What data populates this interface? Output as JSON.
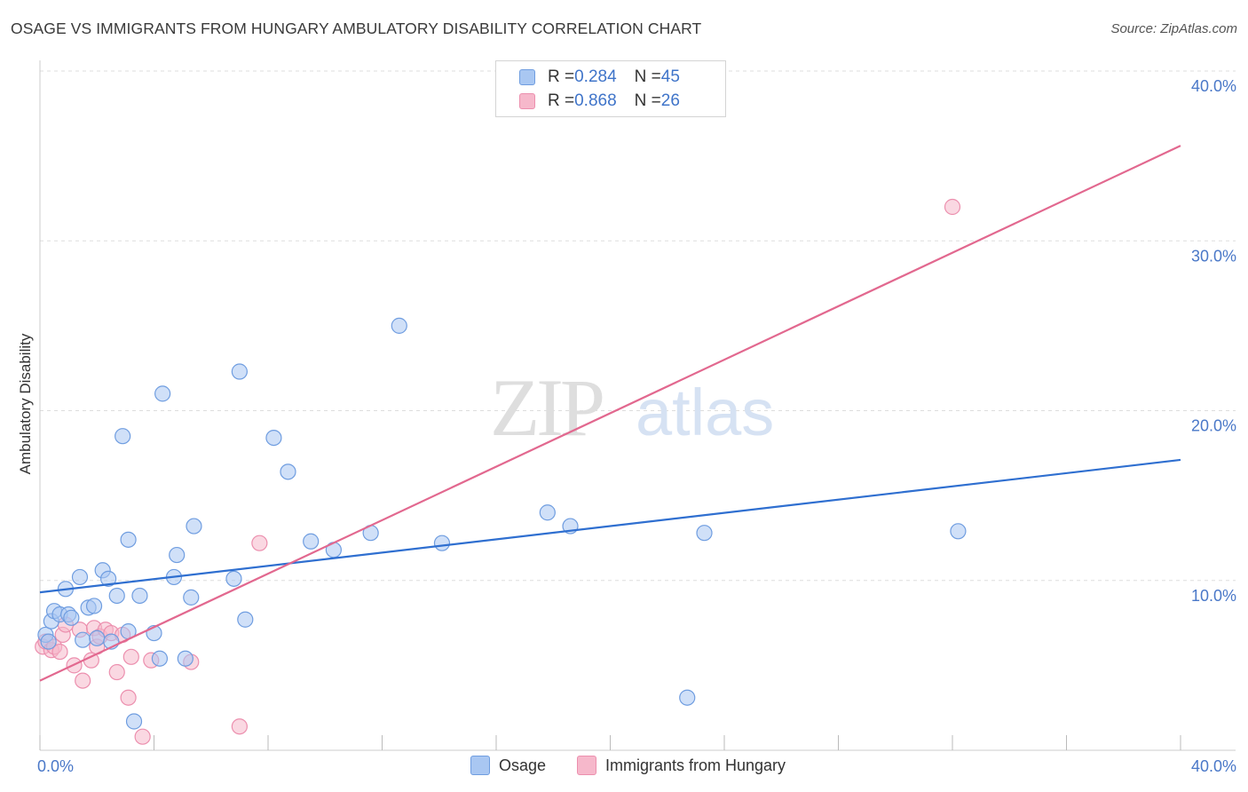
{
  "header": {
    "title": "OSAGE VS IMMIGRANTS FROM HUNGARY AMBULATORY DISABILITY CORRELATION CHART",
    "source": "Source: ZipAtlas.com"
  },
  "legend": {
    "rows": [
      {
        "r_label": "R = ",
        "r_value": "0.284",
        "n_label": "N = ",
        "n_value": "45"
      },
      {
        "r_label": "R = ",
        "r_value": "0.868",
        "n_label": "N = ",
        "n_value": "26"
      }
    ]
  },
  "bottom_legend": [
    "Osage",
    "Immigrants from Hungary"
  ],
  "watermark": {
    "part1": "ZIP",
    "part2": "atlas"
  },
  "colors": {
    "osage_fill": "#a9c7f2",
    "osage_stroke": "#6f9de0",
    "osage_line": "#2f6fd0",
    "hungary_fill": "#f6b8cb",
    "hungary_stroke": "#ec8fae",
    "hungary_line": "#e2688f",
    "tick_text": "#4a78c8",
    "grid": "#dddddd"
  },
  "chart_data": {
    "type": "scatter",
    "title": "OSAGE VS IMMIGRANTS FROM HUNGARY AMBULATORY DISABILITY CORRELATION CHART",
    "xlabel": "",
    "ylabel": "Ambulatory Disability",
    "xlim": [
      0,
      40
    ],
    "ylim": [
      0,
      40
    ],
    "x_tick_labels": [
      "0.0%",
      "40.0%"
    ],
    "y_ticks": [
      10,
      20,
      30,
      40
    ],
    "y_tick_labels": [
      "10.0%",
      "20.0%",
      "30.0%",
      "40.0%"
    ],
    "series": [
      {
        "name": "Osage",
        "R": 0.284,
        "N": 45,
        "trend": {
          "x": [
            0,
            40
          ],
          "y": [
            9.3,
            17.1
          ]
        },
        "points": [
          [
            0.2,
            6.8
          ],
          [
            0.3,
            6.4
          ],
          [
            0.4,
            7.6
          ],
          [
            0.5,
            8.2
          ],
          [
            0.7,
            8.0
          ],
          [
            0.9,
            9.5
          ],
          [
            1.0,
            8.0
          ],
          [
            1.1,
            7.8
          ],
          [
            1.4,
            10.2
          ],
          [
            1.5,
            6.5
          ],
          [
            1.7,
            8.4
          ],
          [
            1.9,
            8.5
          ],
          [
            2.0,
            6.6
          ],
          [
            2.2,
            10.6
          ],
          [
            2.4,
            10.1
          ],
          [
            2.5,
            6.4
          ],
          [
            2.7,
            9.1
          ],
          [
            2.9,
            18.5
          ],
          [
            3.1,
            7.0
          ],
          [
            3.1,
            12.4
          ],
          [
            3.3,
            1.7
          ],
          [
            3.5,
            9.1
          ],
          [
            4.0,
            6.9
          ],
          [
            4.2,
            5.4
          ],
          [
            4.3,
            21.0
          ],
          [
            4.7,
            10.2
          ],
          [
            4.8,
            11.5
          ],
          [
            5.1,
            5.4
          ],
          [
            5.3,
            9.0
          ],
          [
            5.4,
            13.2
          ],
          [
            6.8,
            10.1
          ],
          [
            7.0,
            22.3
          ],
          [
            7.2,
            7.7
          ],
          [
            8.2,
            18.4
          ],
          [
            8.7,
            16.4
          ],
          [
            9.5,
            12.3
          ],
          [
            10.3,
            11.8
          ],
          [
            11.6,
            12.8
          ],
          [
            12.6,
            25.0
          ],
          [
            14.1,
            12.2
          ],
          [
            17.8,
            14.0
          ],
          [
            18.6,
            13.2
          ],
          [
            22.7,
            3.1
          ],
          [
            23.3,
            12.8
          ],
          [
            32.2,
            12.9
          ]
        ]
      },
      {
        "name": "Immigrants from Hungary",
        "R": 0.868,
        "N": 26,
        "trend": {
          "x": [
            0,
            40
          ],
          "y": [
            4.1,
            35.6
          ]
        },
        "points": [
          [
            0.1,
            6.1
          ],
          [
            0.2,
            6.4
          ],
          [
            0.4,
            5.9
          ],
          [
            0.5,
            6.1
          ],
          [
            0.7,
            5.8
          ],
          [
            0.8,
            6.8
          ],
          [
            0.9,
            7.4
          ],
          [
            1.2,
            5.0
          ],
          [
            1.4,
            7.1
          ],
          [
            1.5,
            4.1
          ],
          [
            1.8,
            5.3
          ],
          [
            1.9,
            7.2
          ],
          [
            2.0,
            6.1
          ],
          [
            2.1,
            6.7
          ],
          [
            2.3,
            7.1
          ],
          [
            2.5,
            6.9
          ],
          [
            2.7,
            4.6
          ],
          [
            2.9,
            6.8
          ],
          [
            3.1,
            3.1
          ],
          [
            3.2,
            5.5
          ],
          [
            3.6,
            0.8
          ],
          [
            3.9,
            5.3
          ],
          [
            5.3,
            5.2
          ],
          [
            7.0,
            1.4
          ],
          [
            7.7,
            12.2
          ],
          [
            32.0,
            32.0
          ]
        ]
      }
    ]
  }
}
